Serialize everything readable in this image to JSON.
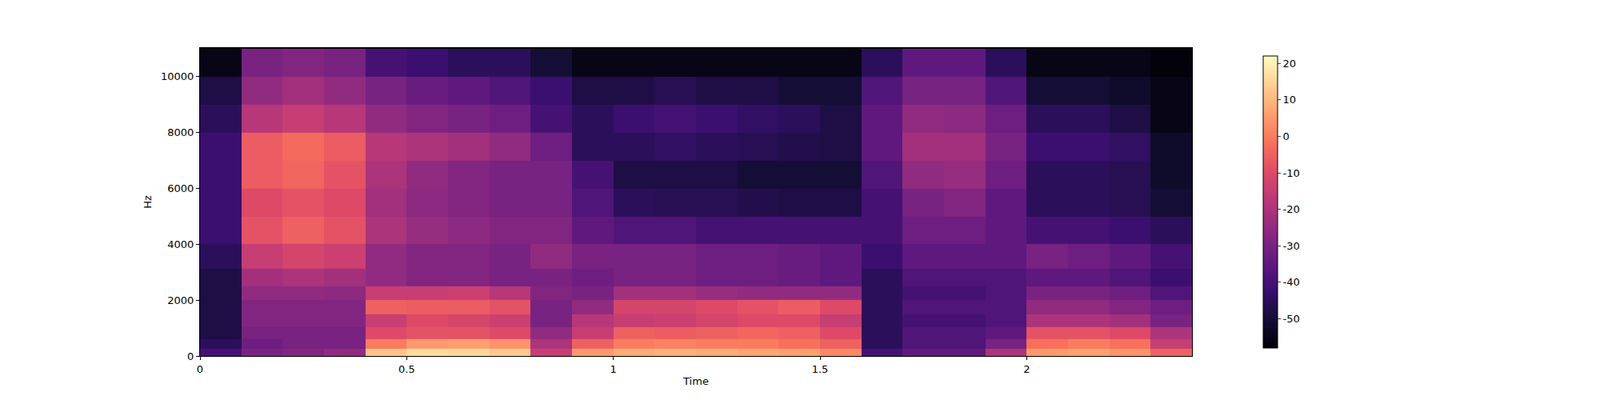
{
  "chart_data": {
    "type": "heatmap",
    "x_label": "Time",
    "y_label": "Hz",
    "color": "magma",
    "x": [
      0.05,
      0.15,
      0.25,
      0.35,
      0.45,
      0.55,
      0.65,
      0.75,
      0.85,
      0.95,
      1.05,
      1.15,
      1.25,
      1.35,
      1.45,
      1.55,
      1.65,
      1.75,
      1.85,
      1.95,
      2.05,
      2.15,
      2.25,
      2.35
    ],
    "y": [
      100,
      400,
      800,
      1250,
      1750,
      2250,
      2750,
      3500,
      4500,
      5500,
      6500,
      7500,
      8500,
      9500,
      10500
    ],
    "z": [
      [
        -40,
        -30,
        -28,
        -25,
        12,
        16,
        15,
        13,
        -15,
        5,
        8,
        9,
        8,
        7,
        6,
        2,
        -40,
        -35,
        -35,
        -20,
        5,
        6,
        4,
        -5
      ],
      [
        -45,
        -32,
        -30,
        -30,
        0,
        5,
        6,
        4,
        -20,
        -5,
        0,
        1,
        0,
        0,
        -2,
        -5,
        -45,
        -38,
        -38,
        -30,
        -2,
        0,
        -2,
        -15
      ],
      [
        -48,
        -30,
        -30,
        -30,
        -10,
        -8,
        -8,
        -10,
        -25,
        -15,
        -5,
        -6,
        -5,
        -4,
        -5,
        -10,
        -45,
        -38,
        -38,
        -35,
        -8,
        -8,
        -10,
        -20
      ],
      [
        -48,
        -28,
        -28,
        -28,
        -15,
        -10,
        -12,
        -14,
        -30,
        -18,
        -15,
        -14,
        -12,
        -10,
        -10,
        -15,
        -45,
        -40,
        -40,
        -38,
        -20,
        -20,
        -22,
        -30
      ],
      [
        -48,
        -28,
        -28,
        -28,
        -5,
        -6,
        -6,
        -8,
        -30,
        -25,
        -12,
        -12,
        -10,
        -8,
        -6,
        -10,
        -45,
        -38,
        -38,
        -38,
        -25,
        -25,
        -28,
        -32
      ],
      [
        -48,
        -25,
        -25,
        -26,
        -15,
        -15,
        -14,
        -18,
        -28,
        -30,
        -22,
        -22,
        -24,
        -25,
        -25,
        -25,
        -45,
        -40,
        -40,
        -38,
        -30,
        -30,
        -32,
        -38
      ],
      [
        -48,
        -22,
        -20,
        -22,
        -25,
        -28,
        -28,
        -30,
        -30,
        -32,
        -30,
        -30,
        -32,
        -32,
        -33,
        -35,
        -45,
        -38,
        -38,
        -38,
        -35,
        -35,
        -38,
        -42
      ],
      [
        -45,
        -15,
        -12,
        -14,
        -25,
        -28,
        -28,
        -30,
        -25,
        -30,
        -30,
        -30,
        -32,
        -32,
        -33,
        -35,
        -42,
        -35,
        -35,
        -35,
        -30,
        -32,
        -35,
        -40
      ],
      [
        -42,
        -8,
        -5,
        -8,
        -20,
        -24,
        -26,
        -28,
        -28,
        -35,
        -38,
        -38,
        -40,
        -40,
        -40,
        -40,
        -40,
        -32,
        -32,
        -35,
        -40,
        -40,
        -42,
        -45
      ],
      [
        -42,
        -10,
        -8,
        -10,
        -22,
        -26,
        -28,
        -30,
        -30,
        -38,
        -45,
        -46,
        -46,
        -47,
        -48,
        -48,
        -40,
        -30,
        -28,
        -35,
        -45,
        -45,
        -46,
        -50
      ],
      [
        -42,
        -6,
        -4,
        -8,
        -20,
        -25,
        -28,
        -30,
        -30,
        -40,
        -48,
        -48,
        -48,
        -50,
        -50,
        -50,
        -38,
        -25,
        -24,
        -32,
        -45,
        -45,
        -46,
        -52
      ],
      [
        -42,
        -6,
        -3,
        -6,
        -18,
        -20,
        -22,
        -25,
        -32,
        -45,
        -45,
        -44,
        -45,
        -46,
        -47,
        -48,
        -35,
        -22,
        -22,
        -30,
        -42,
        -42,
        -44,
        -52
      ],
      [
        -45,
        -18,
        -15,
        -18,
        -25,
        -28,
        -30,
        -32,
        -40,
        -45,
        -42,
        -40,
        -42,
        -44,
        -45,
        -48,
        -35,
        -25,
        -26,
        -32,
        -45,
        -45,
        -48,
        -55
      ],
      [
        -48,
        -25,
        -22,
        -25,
        -30,
        -33,
        -35,
        -38,
        -42,
        -48,
        -48,
        -46,
        -48,
        -48,
        -50,
        -50,
        -38,
        -30,
        -30,
        -38,
        -50,
        -50,
        -52,
        -55
      ],
      [
        -55,
        -30,
        -28,
        -30,
        -40,
        -42,
        -45,
        -45,
        -50,
        -55,
        -55,
        -55,
        -55,
        -55,
        -55,
        -55,
        -45,
        -35,
        -35,
        -45,
        -55,
        -55,
        -55,
        -57
      ]
    ],
    "xlim": [
      0,
      2.4
    ],
    "xticks": [
      0,
      0.5,
      1,
      1.5,
      2
    ],
    "ylim": [
      0,
      11025
    ],
    "yticks": [
      0,
      2000,
      4000,
      6000,
      8000,
      10000
    ],
    "zlim": [
      -58,
      22
    ],
    "zticks": [
      -50,
      -40,
      -30,
      -20,
      -10,
      0,
      10,
      20
    ]
  }
}
